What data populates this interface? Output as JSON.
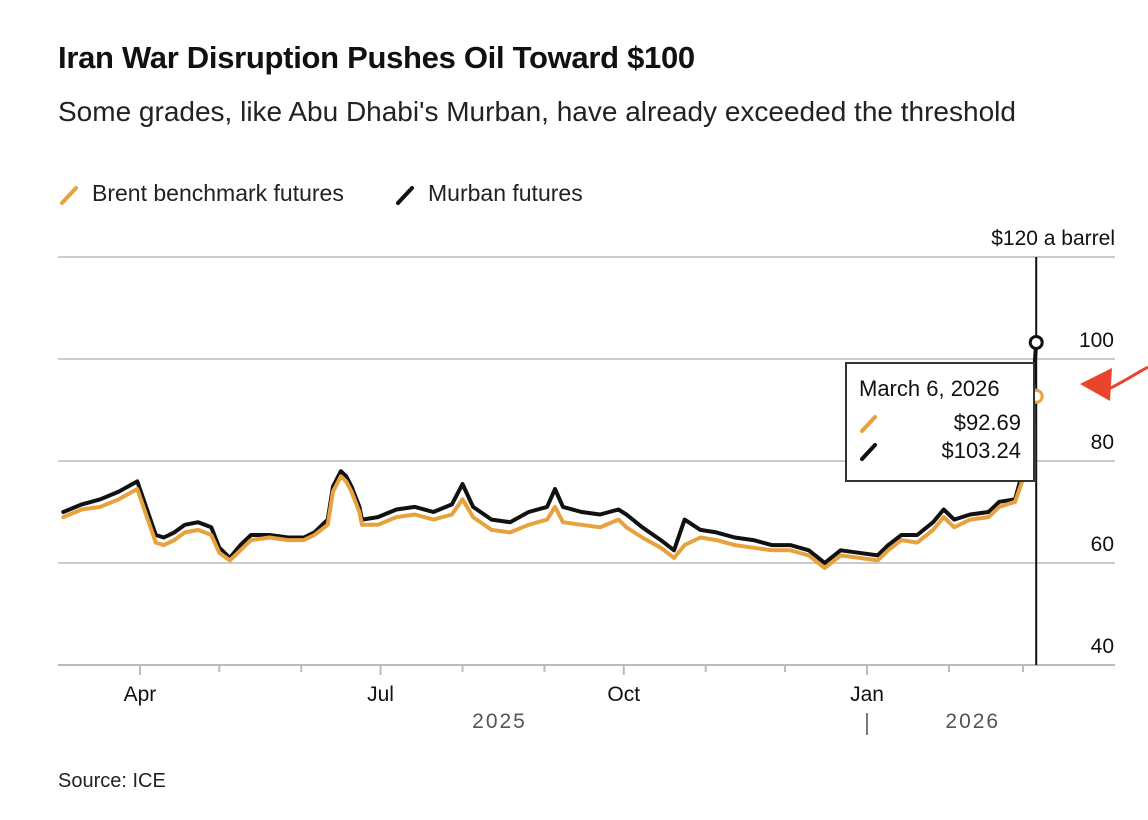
{
  "title": "Iran War Disruption Pushes Oil Toward $100",
  "subtitle": "Some grades, like Abu Dhabi's Murban, have already exceeded the threshold",
  "legend": [
    {
      "label": "Brent benchmark futures",
      "color": "#E8A23D"
    },
    {
      "label": "Murban futures",
      "color": "#111111"
    }
  ],
  "source": "Source: ICE",
  "tooltip": {
    "date": "March 6, 2026",
    "brent": "$92.69",
    "murban": "$103.24"
  },
  "colors": {
    "brent": "#E8A23D",
    "murban": "#111111",
    "grid": "#cccccc",
    "arrow": "#E8452C"
  },
  "chart_data": {
    "type": "line",
    "title": "Iran War Disruption Pushes Oil Toward $100",
    "ylabel": "$ a barrel",
    "ylim": [
      40,
      120
    ],
    "yticks": [
      40,
      60,
      80,
      100,
      120
    ],
    "ytick_labels": [
      "40",
      "60",
      "80",
      "100",
      "$120 a barrel"
    ],
    "xlim": [
      "2025-03-01",
      "2026-03-15"
    ],
    "months": [
      {
        "date": "2025-04-01",
        "label": "Apr"
      },
      {
        "date": "2025-05-01",
        "label": ""
      },
      {
        "date": "2025-06-01",
        "label": ""
      },
      {
        "date": "2025-07-01",
        "label": "Jul"
      },
      {
        "date": "2025-08-01",
        "label": ""
      },
      {
        "date": "2025-09-01",
        "label": ""
      },
      {
        "date": "2025-10-01",
        "label": "Oct"
      },
      {
        "date": "2025-11-01",
        "label": ""
      },
      {
        "date": "2025-12-01",
        "label": ""
      },
      {
        "date": "2026-01-01",
        "label": "Jan"
      },
      {
        "date": "2026-02-01",
        "label": ""
      },
      {
        "date": "2026-03-01",
        "label": ""
      }
    ],
    "years": [
      {
        "label": "2025",
        "date": "2025-08-15"
      },
      {
        "label": "2026",
        "date": "2026-02-10"
      }
    ],
    "year_divider_date": "2026-01-01",
    "highlight_date": "2026-03-06",
    "series": [
      {
        "name": "Brent benchmark futures",
        "color": "#E8A23D",
        "points": [
          [
            "2025-03-03",
            69
          ],
          [
            "2025-03-10",
            70.5
          ],
          [
            "2025-03-17",
            71
          ],
          [
            "2025-03-24",
            72.5
          ],
          [
            "2025-03-31",
            74.5
          ],
          [
            "2025-04-03",
            70
          ],
          [
            "2025-04-07",
            64
          ],
          [
            "2025-04-10",
            63.5
          ],
          [
            "2025-04-14",
            64.5
          ],
          [
            "2025-04-18",
            66
          ],
          [
            "2025-04-23",
            66.5
          ],
          [
            "2025-04-28",
            65.5
          ],
          [
            "2025-05-01",
            62
          ],
          [
            "2025-05-05",
            60.5
          ],
          [
            "2025-05-09",
            62.5
          ],
          [
            "2025-05-13",
            64.5
          ],
          [
            "2025-05-20",
            65
          ],
          [
            "2025-05-27",
            64.5
          ],
          [
            "2025-06-02",
            64.5
          ],
          [
            "2025-06-06",
            65.5
          ],
          [
            "2025-06-11",
            67.5
          ],
          [
            "2025-06-13",
            74
          ],
          [
            "2025-06-16",
            77
          ],
          [
            "2025-06-18",
            76
          ],
          [
            "2025-06-20",
            74
          ],
          [
            "2025-06-23",
            70
          ],
          [
            "2025-06-24",
            67.5
          ],
          [
            "2025-06-30",
            67.5
          ],
          [
            "2025-07-07",
            69
          ],
          [
            "2025-07-14",
            69.5
          ],
          [
            "2025-07-21",
            68.5
          ],
          [
            "2025-07-28",
            69.5
          ],
          [
            "2025-08-01",
            72.5
          ],
          [
            "2025-08-05",
            69
          ],
          [
            "2025-08-12",
            66.5
          ],
          [
            "2025-08-19",
            66
          ],
          [
            "2025-08-26",
            67.5
          ],
          [
            "2025-09-02",
            68.5
          ],
          [
            "2025-09-05",
            71
          ],
          [
            "2025-09-08",
            68
          ],
          [
            "2025-09-15",
            67.5
          ],
          [
            "2025-09-22",
            67
          ],
          [
            "2025-09-29",
            68.5
          ],
          [
            "2025-10-02",
            67
          ],
          [
            "2025-10-08",
            65
          ],
          [
            "2025-10-15",
            63
          ],
          [
            "2025-10-20",
            61
          ],
          [
            "2025-10-24",
            63.5
          ],
          [
            "2025-10-30",
            65
          ],
          [
            "2025-11-05",
            64.5
          ],
          [
            "2025-11-12",
            63.5
          ],
          [
            "2025-11-19",
            63
          ],
          [
            "2025-11-26",
            62.5
          ],
          [
            "2025-12-03",
            62.5
          ],
          [
            "2025-12-10",
            61.5
          ],
          [
            "2025-12-16",
            59
          ],
          [
            "2025-12-22",
            61.5
          ],
          [
            "2025-12-29",
            61
          ],
          [
            "2026-01-05",
            60.5
          ],
          [
            "2026-01-09",
            62.5
          ],
          [
            "2026-01-14",
            64.5
          ],
          [
            "2026-01-20",
            64
          ],
          [
            "2026-01-26",
            66.5
          ],
          [
            "2026-01-30",
            69
          ],
          [
            "2026-02-03",
            67
          ],
          [
            "2026-02-09",
            68.5
          ],
          [
            "2026-02-16",
            69
          ],
          [
            "2026-02-20",
            71
          ],
          [
            "2026-02-26",
            72
          ],
          [
            "2026-03-02",
            78
          ],
          [
            "2026-03-04",
            83
          ],
          [
            "2026-03-06",
            92.69
          ]
        ]
      },
      {
        "name": "Murban futures",
        "color": "#111111",
        "points": [
          [
            "2025-03-03",
            70
          ],
          [
            "2025-03-10",
            71.5
          ],
          [
            "2025-03-17",
            72.5
          ],
          [
            "2025-03-24",
            74
          ],
          [
            "2025-03-31",
            76
          ],
          [
            "2025-04-03",
            71.5
          ],
          [
            "2025-04-07",
            65.5
          ],
          [
            "2025-04-10",
            65
          ],
          [
            "2025-04-14",
            66
          ],
          [
            "2025-04-18",
            67.5
          ],
          [
            "2025-04-23",
            68
          ],
          [
            "2025-04-28",
            67
          ],
          [
            "2025-05-01",
            63
          ],
          [
            "2025-05-05",
            61
          ],
          [
            "2025-05-09",
            63.5
          ],
          [
            "2025-05-13",
            65.5
          ],
          [
            "2025-05-20",
            65.5
          ],
          [
            "2025-05-27",
            65
          ],
          [
            "2025-06-02",
            65
          ],
          [
            "2025-06-06",
            66
          ],
          [
            "2025-06-11",
            68.5
          ],
          [
            "2025-06-13",
            75
          ],
          [
            "2025-06-16",
            78
          ],
          [
            "2025-06-18",
            77
          ],
          [
            "2025-06-20",
            75
          ],
          [
            "2025-06-23",
            71
          ],
          [
            "2025-06-24",
            68.5
          ],
          [
            "2025-06-30",
            69
          ],
          [
            "2025-07-07",
            70.5
          ],
          [
            "2025-07-14",
            71
          ],
          [
            "2025-07-21",
            70
          ],
          [
            "2025-07-28",
            71.5
          ],
          [
            "2025-08-01",
            75.5
          ],
          [
            "2025-08-05",
            71
          ],
          [
            "2025-08-12",
            68.5
          ],
          [
            "2025-08-19",
            68
          ],
          [
            "2025-08-26",
            70
          ],
          [
            "2025-09-02",
            71
          ],
          [
            "2025-09-05",
            74.5
          ],
          [
            "2025-09-08",
            71
          ],
          [
            "2025-09-15",
            70
          ],
          [
            "2025-09-22",
            69.5
          ],
          [
            "2025-09-29",
            70.5
          ],
          [
            "2025-10-02",
            69.5
          ],
          [
            "2025-10-08",
            67
          ],
          [
            "2025-10-15",
            64.5
          ],
          [
            "2025-10-20",
            62.5
          ],
          [
            "2025-10-24",
            68.5
          ],
          [
            "2025-10-30",
            66.5
          ],
          [
            "2025-11-05",
            66
          ],
          [
            "2025-11-12",
            65
          ],
          [
            "2025-11-19",
            64.5
          ],
          [
            "2025-11-26",
            63.5
          ],
          [
            "2025-12-03",
            63.5
          ],
          [
            "2025-12-10",
            62.5
          ],
          [
            "2025-12-16",
            60
          ],
          [
            "2025-12-22",
            62.5
          ],
          [
            "2025-12-29",
            62
          ],
          [
            "2026-01-05",
            61.5
          ],
          [
            "2026-01-09",
            63.5
          ],
          [
            "2026-01-14",
            65.5
          ],
          [
            "2026-01-20",
            65.5
          ],
          [
            "2026-01-26",
            68
          ],
          [
            "2026-01-30",
            70.5
          ],
          [
            "2026-02-03",
            68.5
          ],
          [
            "2026-02-09",
            69.5
          ],
          [
            "2026-02-16",
            70
          ],
          [
            "2026-02-20",
            72
          ],
          [
            "2026-02-26",
            72.5
          ],
          [
            "2026-03-02",
            80
          ],
          [
            "2026-03-04",
            88
          ],
          [
            "2026-03-06",
            103.24
          ]
        ]
      }
    ]
  }
}
